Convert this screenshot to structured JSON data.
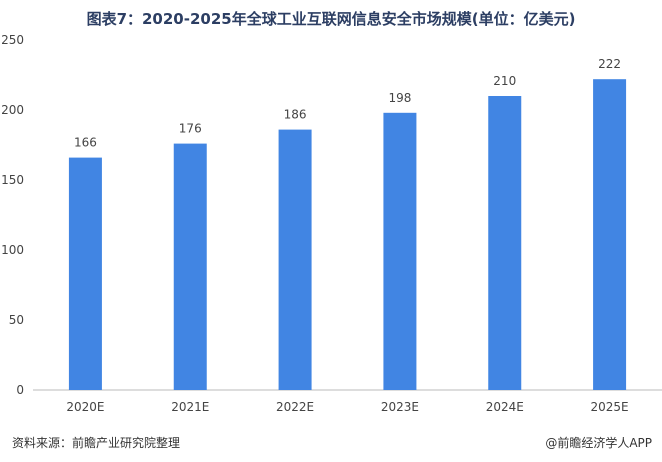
{
  "chart_data": {
    "type": "bar",
    "title": "图表7：2020-2025年全球工业互联网信息安全市场规模(单位：亿美元)",
    "categories": [
      "2020E",
      "2021E",
      "2022E",
      "2023E",
      "2024E",
      "2025E"
    ],
    "values": [
      166,
      176,
      186,
      198,
      210,
      222
    ],
    "ylim": [
      0,
      250
    ],
    "yticks": [
      0,
      50,
      100,
      150,
      200,
      250
    ],
    "bar_color": "#4185e3",
    "grid": false,
    "legend": "none"
  },
  "footer": {
    "source": "资料来源：前瞻产业研究院整理",
    "brand": "@前瞻经济学人APP"
  }
}
